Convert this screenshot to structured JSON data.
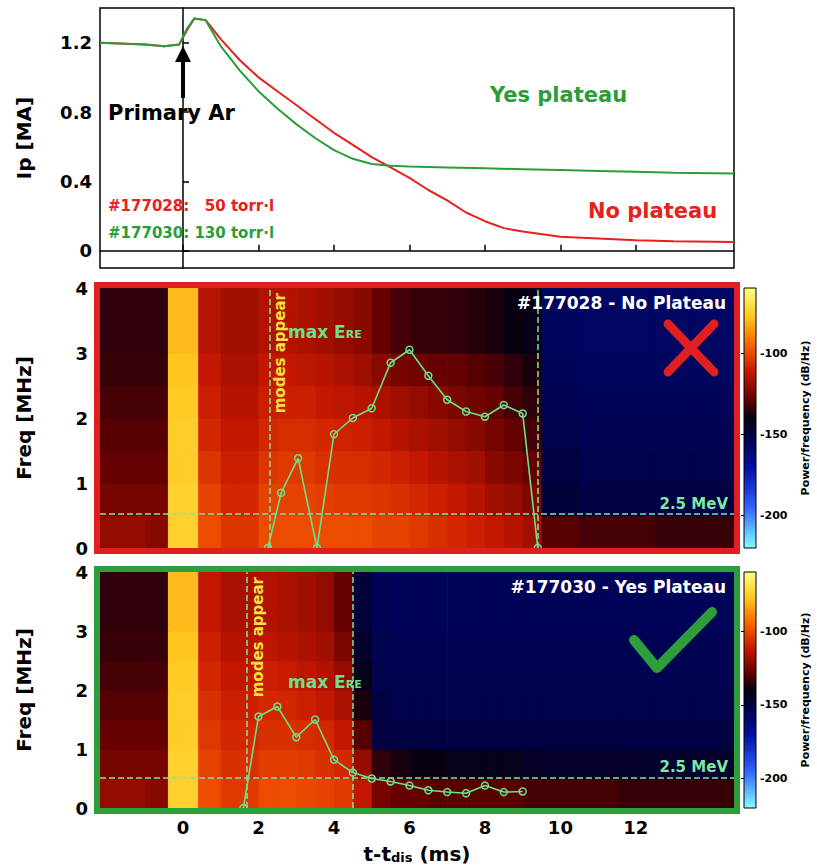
{
  "chart_data": [
    {
      "type": "line",
      "ylabel": "Ip [MA]",
      "xlim": [
        -2.2,
        14.6
      ],
      "xticks": [
        0,
        2,
        4,
        6,
        8,
        10,
        12
      ],
      "ylim": [
        -0.1,
        1.4
      ],
      "yticks": [
        0,
        0.4,
        0.8,
        1.2
      ],
      "tick_labels": "y",
      "series": [
        {
          "name": "#177028:   50 torr·l",
          "color": "#e8201e",
          "x": [
            -2.2,
            -1,
            -0.5,
            -0.1,
            0.1,
            0.3,
            0.6,
            1,
            1.5,
            2,
            2.5,
            3,
            3.5,
            4,
            4.5,
            5,
            5.5,
            6,
            6.5,
            7,
            7.5,
            8,
            8.5,
            9,
            10,
            11,
            12,
            13,
            14.6
          ],
          "values": [
            1.2,
            1.19,
            1.18,
            1.19,
            1.27,
            1.34,
            1.33,
            1.22,
            1.1,
            1.0,
            0.92,
            0.84,
            0.76,
            0.68,
            0.61,
            0.54,
            0.48,
            0.42,
            0.35,
            0.29,
            0.22,
            0.17,
            0.13,
            0.11,
            0.08,
            0.07,
            0.06,
            0.055,
            0.05
          ]
        },
        {
          "name": "#177030: 130 torr·l",
          "color": "#2a9d3a",
          "x": [
            -2.2,
            -1,
            -0.5,
            -0.1,
            0.1,
            0.3,
            0.6,
            1,
            1.5,
            2,
            2.5,
            3,
            3.5,
            4,
            4.5,
            5,
            5.5,
            6,
            7,
            8,
            9,
            10,
            11,
            12,
            13,
            14.6
          ],
          "values": [
            1.2,
            1.19,
            1.18,
            1.19,
            1.28,
            1.34,
            1.33,
            1.18,
            1.04,
            0.92,
            0.82,
            0.73,
            0.65,
            0.58,
            0.53,
            0.5,
            0.49,
            0.485,
            0.48,
            0.475,
            0.47,
            0.465,
            0.46,
            0.455,
            0.45,
            0.445
          ]
        }
      ],
      "annotations": [
        {
          "text": "Primary Ar",
          "color": "#000000"
        },
        {
          "text": "Yes plateau",
          "color": "#2a9d3a"
        },
        {
          "text": "No plateau",
          "color": "#e8201e"
        }
      ]
    },
    {
      "type": "spectrogram",
      "title": "#177028 - No Plateau",
      "color": "#e02020",
      "ylabel": "Freq [MHz]",
      "xlim": [
        -2.2,
        14.6
      ],
      "xticks": [
        0,
        2,
        4,
        6,
        8,
        10,
        12
      ],
      "ylim": [
        0,
        4
      ],
      "yticks": [
        0,
        1,
        2,
        3,
        4
      ],
      "tick_labels": "y",
      "time_edges": [
        -2.2,
        -1,
        -0.4,
        0.4,
        1,
        1.5,
        2,
        2.5,
        3,
        3.5,
        4,
        4.5,
        5,
        5.5,
        6,
        6.5,
        7,
        7.5,
        8,
        8.5,
        9,
        9.5,
        10.5,
        11.5,
        12.5,
        13.5,
        14.6
      ],
      "freq_edges": [
        0,
        0.5,
        1,
        1.5,
        2,
        2.5,
        3,
        4
      ],
      "power": [
        [
          -120,
          -122,
          -75,
          -100,
          -105,
          -105,
          -100,
          -100,
          -100,
          -100,
          -100,
          -100,
          -102,
          -102,
          -104,
          -106,
          -108,
          -110,
          -112,
          -114,
          -118,
          -130,
          -132,
          -132,
          -134,
          -134
        ],
        [
          -125,
          -125,
          -75,
          -102,
          -108,
          -108,
          -102,
          -102,
          -102,
          -103,
          -104,
          -104,
          -105,
          -106,
          -108,
          -110,
          -112,
          -114,
          -118,
          -120,
          -124,
          -148,
          -150,
          -150,
          -150,
          -150
        ],
        [
          -128,
          -128,
          -76,
          -105,
          -110,
          -110,
          -105,
          -104,
          -104,
          -106,
          -106,
          -107,
          -108,
          -110,
          -112,
          -114,
          -116,
          -118,
          -122,
          -124,
          -128,
          -150,
          -152,
          -152,
          -152,
          -152
        ],
        [
          -130,
          -130,
          -76,
          -108,
          -112,
          -112,
          -108,
          -107,
          -107,
          -108,
          -109,
          -110,
          -112,
          -114,
          -116,
          -118,
          -120,
          -122,
          -125,
          -128,
          -132,
          -152,
          -154,
          -154,
          -154,
          -154
        ],
        [
          -132,
          -132,
          -77,
          -110,
          -114,
          -114,
          -110,
          -110,
          -110,
          -112,
          -113,
          -114,
          -116,
          -118,
          -120,
          -122,
          -124,
          -126,
          -128,
          -132,
          -135,
          -154,
          -155,
          -155,
          -155,
          -155
        ],
        [
          -134,
          -134,
          -78,
          -112,
          -116,
          -116,
          -112,
          -112,
          -113,
          -114,
          -116,
          -118,
          -122,
          -125,
          -126,
          -128,
          -128,
          -130,
          -132,
          -135,
          -138,
          -155,
          -156,
          -156,
          -156,
          -156
        ],
        [
          -135,
          -135,
          -80,
          -114,
          -118,
          -118,
          -115,
          -115,
          -116,
          -118,
          -120,
          -122,
          -128,
          -132,
          -134,
          -134,
          -135,
          -136,
          -138,
          -140,
          -142,
          -156,
          -157,
          -157,
          -157,
          -157
        ]
      ],
      "colorbar": {
        "label": "Power/frequency (dB/Hz)",
        "range": [
          -220,
          -60
        ],
        "ticks": [
          -200,
          -150,
          -100
        ]
      },
      "overlay": {
        "label": [
          "max E",
          "RE"
        ],
        "color": "#6ee08a",
        "marker": "circle",
        "x": [
          2.25,
          2.6,
          3.05,
          3.55,
          4.0,
          4.5,
          5.0,
          5.5,
          6.0,
          6.5,
          7.0,
          7.5,
          8.0,
          8.5,
          9.0,
          9.4
        ],
        "values": [
          0,
          0.85,
          1.38,
          0,
          1.75,
          2.0,
          2.15,
          2.85,
          3.05,
          2.65,
          2.28,
          2.1,
          2.02,
          2.2,
          2.07,
          0
        ]
      },
      "events": [
        {
          "x": 2.3,
          "label": "modes appear"
        },
        {
          "x": 9.4
        }
      ],
      "threshold": {
        "value": 0.52,
        "label": "2.5 MeV"
      }
    },
    {
      "type": "spectrogram",
      "title": "#177030 - Yes Plateau",
      "color": "#2e9e3a",
      "ylabel": "Freq [MHz]",
      "xlabel": [
        "t-t",
        "dis",
        "(ms)"
      ],
      "xlim": [
        -2.2,
        14.6
      ],
      "xticks": [
        0,
        2,
        4,
        6,
        8,
        10,
        12
      ],
      "ylim": [
        0,
        4
      ],
      "yticks": [
        0,
        1,
        2,
        3,
        4
      ],
      "time_edges": [
        -2.2,
        -1,
        -0.4,
        0.4,
        1,
        1.5,
        2,
        2.5,
        3,
        3.5,
        4,
        4.5,
        5,
        5.5,
        6,
        6.5,
        7,
        7.5,
        8,
        8.5,
        9,
        9.5,
        10.5,
        11.5,
        12.5,
        13.5,
        14.6
      ],
      "freq_edges": [
        0,
        0.5,
        1,
        1.5,
        2,
        2.5,
        3,
        4
      ],
      "power": [
        [
          -120,
          -122,
          -75,
          -100,
          -104,
          -104,
          -100,
          -100,
          -101,
          -102,
          -104,
          -112,
          -125,
          -128,
          -128,
          -130,
          -130,
          -130,
          -130,
          -130,
          -132,
          -132,
          -132,
          -134,
          -134,
          -134
        ],
        [
          -125,
          -125,
          -75,
          -102,
          -106,
          -106,
          -103,
          -103,
          -104,
          -106,
          -108,
          -120,
          -135,
          -138,
          -140,
          -140,
          -142,
          -142,
          -142,
          -142,
          -144,
          -145,
          -145,
          -146,
          -146,
          -146
        ],
        [
          -128,
          -128,
          -76,
          -104,
          -108,
          -108,
          -106,
          -106,
          -107,
          -108,
          -112,
          -130,
          -150,
          -150,
          -150,
          -150,
          -150,
          -150,
          -150,
          -150,
          -150,
          -150,
          -150,
          -150,
          -150,
          -150
        ],
        [
          -130,
          -130,
          -76,
          -106,
          -110,
          -110,
          -108,
          -108,
          -110,
          -112,
          -116,
          -138,
          -150,
          -152,
          -152,
          -152,
          -152,
          -152,
          -152,
          -152,
          -152,
          -152,
          -152,
          -152,
          -152,
          -152
        ],
        [
          -132,
          -132,
          -77,
          -108,
          -112,
          -112,
          -110,
          -111,
          -113,
          -115,
          -120,
          -142,
          -152,
          -153,
          -153,
          -153,
          -153,
          -153,
          -153,
          -153,
          -153,
          -153,
          -153,
          -153,
          -153,
          -153
        ],
        [
          -134,
          -134,
          -78,
          -110,
          -114,
          -114,
          -113,
          -114,
          -116,
          -118,
          -124,
          -145,
          -153,
          -154,
          -154,
          -154,
          -154,
          -154,
          -154,
          -154,
          -154,
          -154,
          -154,
          -154,
          -154,
          -154
        ],
        [
          -135,
          -135,
          -80,
          -112,
          -116,
          -116,
          -115,
          -116,
          -118,
          -120,
          -128,
          -148,
          -154,
          -155,
          -155,
          -155,
          -155,
          -155,
          -155,
          -155,
          -155,
          -155,
          -155,
          -155,
          -155,
          -155
        ]
      ],
      "colorbar": {
        "label": "Power/frequency (dB/Hz)",
        "range": [
          -220,
          -60
        ],
        "ticks": [
          -200,
          -150,
          -100
        ]
      },
      "overlay": {
        "label": [
          "max E",
          "RE"
        ],
        "color": "#6ee08a",
        "marker": "circle",
        "x": [
          1.6,
          2.0,
          2.5,
          3.0,
          3.5,
          4.0,
          4.5,
          5.0,
          5.5,
          6.0,
          6.5,
          7.0,
          7.5,
          8.0,
          8.5,
          9.0
        ],
        "values": [
          0,
          1.55,
          1.72,
          1.2,
          1.5,
          0.82,
          0.6,
          0.5,
          0.45,
          0.38,
          0.3,
          0.27,
          0.25,
          0.38,
          0.27,
          0.28
        ]
      },
      "events": [
        {
          "x": 1.7,
          "label": "modes appear"
        },
        {
          "x": 4.5
        }
      ],
      "threshold": {
        "value": 0.52,
        "label": "2.5 MeV"
      }
    }
  ]
}
